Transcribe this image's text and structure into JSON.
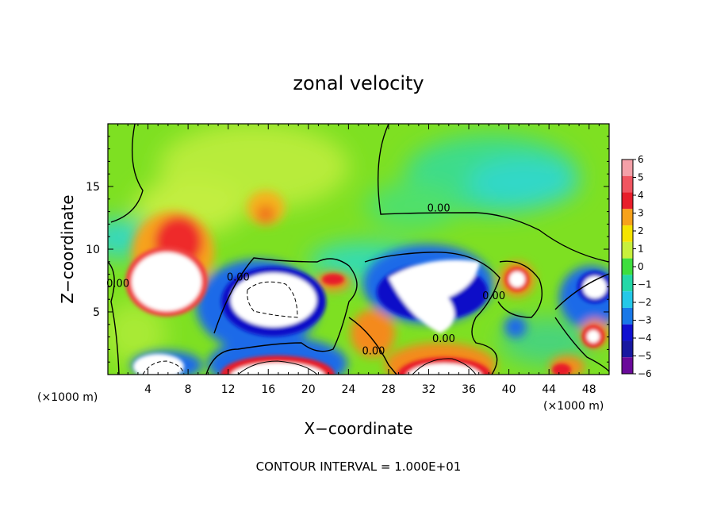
{
  "chart_data": {
    "type": "heatmap",
    "title": "zonal velocity",
    "xlabel": "X−coordinate",
    "ylabel": "Z−coordinate",
    "x_units": "(×1000 m)",
    "x_ticks": [
      4,
      8,
      12,
      16,
      20,
      24,
      28,
      32,
      36,
      40,
      44,
      48
    ],
    "y_ticks": [
      5,
      10,
      15
    ],
    "xlim": [
      0,
      50
    ],
    "ylim": [
      0,
      20
    ],
    "colorbar": {
      "levels": [
        "6",
        "5",
        "4",
        "3",
        "2",
        "1",
        "0",
        "−1",
        "−2",
        "−3",
        "−4",
        "−5",
        "−6"
      ],
      "range": [
        -6,
        6
      ],
      "colors": [
        "#f4a0a8",
        "#f05560",
        "#e81e2a",
        "#f7a21b",
        "#f5e400",
        "#c8f03c",
        "#3ede3e",
        "#24d8a8",
        "#24c8e8",
        "#1878e8",
        "#1010d0",
        "#1818a0",
        "#6a0a9a"
      ]
    },
    "contour_labels": [
      {
        "text": "0.00",
        "x": 33,
        "z": 13
      },
      {
        "text": "0.00",
        "x": 13,
        "z": 7.5
      },
      {
        "text": "0.00",
        "x": 1,
        "z": 7
      },
      {
        "text": "0.00",
        "x": 38.5,
        "z": 6
      },
      {
        "text": "0.00",
        "x": 26.5,
        "z": 1.6
      },
      {
        "text": "0.00",
        "x": 33.5,
        "z": 2.6
      }
    ],
    "contour_interval_text": "CONTOUR INTERVAL = 1.000E+01",
    "grid": false,
    "legend": "colorbar right"
  }
}
